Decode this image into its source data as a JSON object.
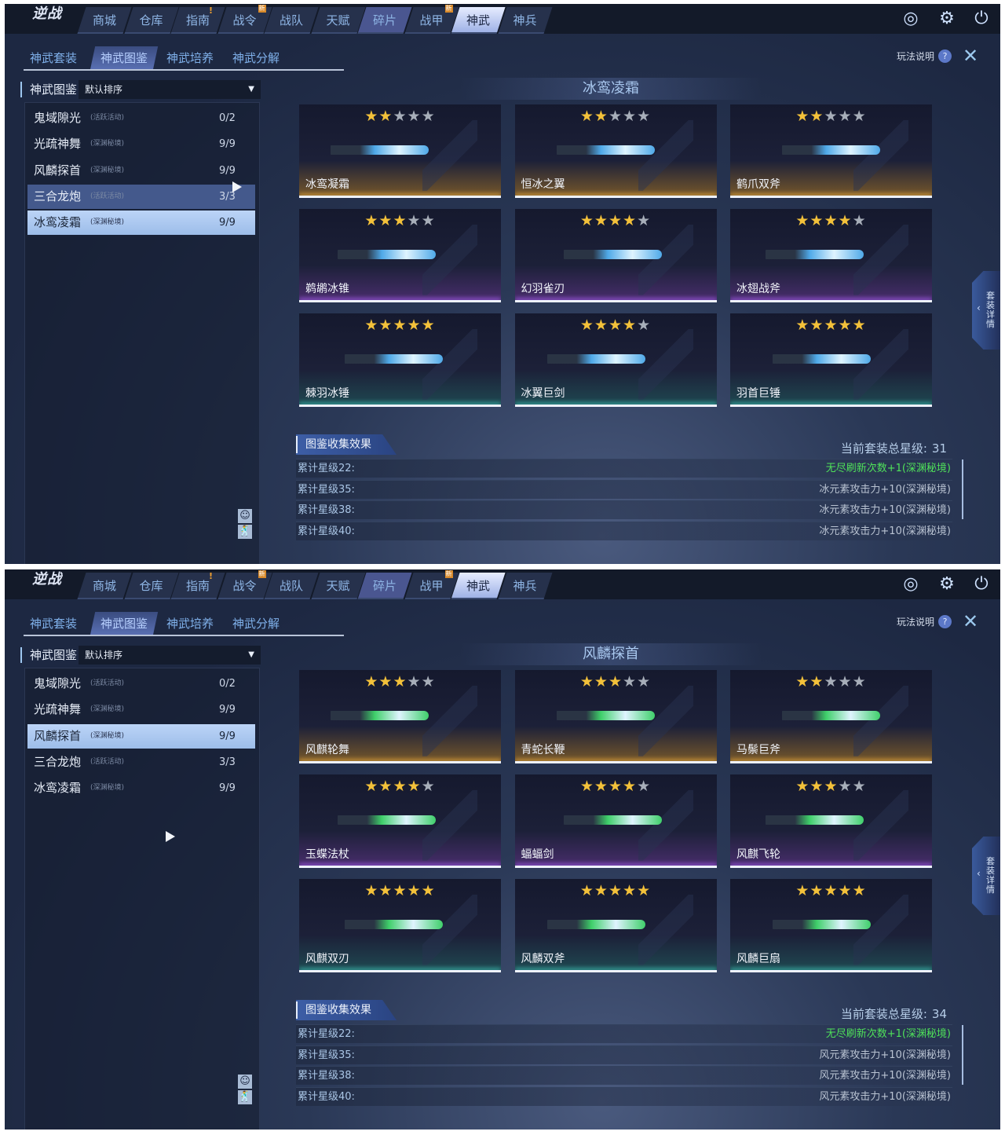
{
  "nav": {
    "logo": "逆战",
    "tabs": [
      {
        "label": "商城"
      },
      {
        "label": "仓库"
      },
      {
        "label": "指南",
        "alert": "!"
      },
      {
        "label": "战令",
        "badge": "新"
      },
      {
        "label": "战队"
      },
      {
        "label": "天赋"
      },
      {
        "label": "碎片"
      },
      {
        "label": "战甲",
        "badge": "新"
      },
      {
        "label": "神武",
        "active": true
      },
      {
        "label": "神兵"
      }
    ],
    "icons": [
      "radar-icon",
      "gear-icon",
      "power-icon"
    ]
  },
  "subtabs": [
    "神武套装",
    "神武图鉴",
    "神武培养",
    "神武分解"
  ],
  "active_subtab": 1,
  "help_label": "玩法说明",
  "help_icon": "?",
  "close_icon": "✕",
  "left_header": "神武图鉴",
  "sort_value": "默认排序",
  "side_tab": "套装详情",
  "effects_title": "图鉴收集效果",
  "total_label": "当前套装总星级:",
  "tier_colors": {
    "gold": "#7a5a2a",
    "purple": "#4a2e6e",
    "teal": "#1f4a52"
  },
  "panels": [
    {
      "set_title": "冰鸾凌霜",
      "weapon_color": "#4fa9e8",
      "list": [
        {
          "name": "鬼域隙光",
          "tag": "(活跃活动)",
          "count": "0/2"
        },
        {
          "name": "光疏神舞",
          "tag": "(深渊秘境)",
          "count": "9/9"
        },
        {
          "name": "风麟探首",
          "tag": "(深渊秘境)",
          "count": "9/9"
        },
        {
          "name": "三合龙炮",
          "tag": "(活跃活动)",
          "count": "3/3",
          "state": "hover"
        },
        {
          "name": "冰鸾凌霜",
          "tag": "(深渊秘境)",
          "count": "9/9",
          "state": "selected"
        }
      ],
      "cards": [
        {
          "name": "冰鸾凝霜",
          "stars": 2,
          "tier": "gold"
        },
        {
          "name": "恒冰之翼",
          "stars": 2,
          "tier": "gold"
        },
        {
          "name": "鹤爪双斧",
          "stars": 2,
          "tier": "gold"
        },
        {
          "name": "鹈鹕冰锥",
          "stars": 3,
          "tier": "purple"
        },
        {
          "name": "幻羽雀刃",
          "stars": 4,
          "tier": "purple"
        },
        {
          "name": "冰翅战斧",
          "stars": 4,
          "tier": "purple"
        },
        {
          "name": "棘羽冰锤",
          "stars": 5,
          "tier": "teal"
        },
        {
          "name": "冰翼巨剑",
          "stars": 4,
          "tier": "teal"
        },
        {
          "name": "羽首巨锤",
          "stars": 5,
          "tier": "teal"
        }
      ],
      "total": "31",
      "effects": [
        {
          "key": "累计星级22:",
          "value": "无尽刷新次数+1(深渊秘境)",
          "green": true
        },
        {
          "key": "累计星级35:",
          "value": "冰元素攻击力+10(深渊秘境)"
        },
        {
          "key": "累计星级38:",
          "value": "冰元素攻击力+10(深渊秘境)"
        },
        {
          "key": "累计星级40:",
          "value": "冰元素攻击力+10(深渊秘境)"
        }
      ]
    },
    {
      "set_title": "风麟探首",
      "weapon_color": "#3fcf6a",
      "list": [
        {
          "name": "鬼域隙光",
          "tag": "(活跃活动)",
          "count": "0/2"
        },
        {
          "name": "光疏神舞",
          "tag": "(深渊秘境)",
          "count": "9/9"
        },
        {
          "name": "风麟探首",
          "tag": "(深渊秘境)",
          "count": "9/9",
          "state": "selected"
        },
        {
          "name": "三合龙炮",
          "tag": "(活跃活动)",
          "count": "3/3"
        },
        {
          "name": "冰鸾凌霜",
          "tag": "(深渊秘境)",
          "count": "9/9"
        }
      ],
      "cards": [
        {
          "name": "风麒轮舞",
          "stars": 3,
          "tier": "gold"
        },
        {
          "name": "青蛇长鞭",
          "stars": 3,
          "tier": "gold"
        },
        {
          "name": "马鬃巨斧",
          "stars": 2,
          "tier": "gold"
        },
        {
          "name": "玉蝶法杖",
          "stars": 4,
          "tier": "purple"
        },
        {
          "name": "蝠蝠剑",
          "stars": 4,
          "tier": "purple"
        },
        {
          "name": "风麒飞轮",
          "stars": 3,
          "tier": "purple"
        },
        {
          "name": "风麒双刃",
          "stars": 5,
          "tier": "teal"
        },
        {
          "name": "风麟双斧",
          "stars": 5,
          "tier": "teal"
        },
        {
          "name": "风麟巨扇",
          "stars": 5,
          "tier": "teal"
        }
      ],
      "total": "34",
      "effects": [
        {
          "key": "累计星级22:",
          "value": "无尽刷新次数+1(深渊秘境)",
          "green": true
        },
        {
          "key": "累计星级35:",
          "value": "风元素攻击力+10(深渊秘境)"
        },
        {
          "key": "累计星级38:",
          "value": "风元素攻击力+10(深渊秘境)"
        },
        {
          "key": "累计星级40:",
          "value": "风元素攻击力+10(深渊秘境)"
        }
      ]
    }
  ]
}
